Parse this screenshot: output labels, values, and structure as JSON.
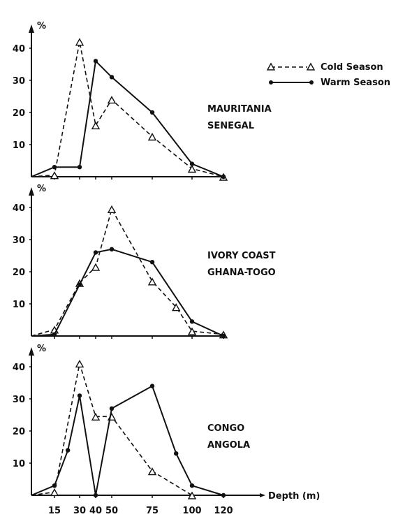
{
  "chart_data": [
    {
      "type": "line",
      "title": "",
      "region_lines": [
        "MAURITANIA",
        "SENEGAL"
      ],
      "ylabel": "%",
      "xlabel": "",
      "ylim": [
        0,
        45
      ],
      "yticks": [
        10,
        20,
        30,
        40
      ],
      "series": [
        {
          "name": "Cold Season",
          "style": "dashed-triangle",
          "x": [
            0,
            15,
            30,
            40,
            50,
            75,
            100,
            120
          ],
          "y": [
            0,
            0.5,
            42,
            16,
            24,
            12.5,
            2.5,
            0
          ]
        },
        {
          "name": "Warm Season",
          "style": "solid-dot",
          "x": [
            0,
            15,
            30,
            40,
            50,
            75,
            100,
            120
          ],
          "y": [
            0,
            3,
            3,
            36,
            31,
            20,
            4,
            0
          ]
        }
      ]
    },
    {
      "type": "line",
      "title": "",
      "region_lines": [
        "IVORY COAST",
        "GHANA-TOGO"
      ],
      "ylabel": "%",
      "xlabel": "",
      "ylim": [
        0,
        45
      ],
      "yticks": [
        10,
        20,
        30,
        40
      ],
      "series": [
        {
          "name": "Cold Season",
          "style": "dashed-triangle",
          "x": [
            0,
            15,
            30,
            40,
            50,
            75,
            90,
            100,
            120
          ],
          "y": [
            0,
            2,
            16.5,
            21.5,
            39.5,
            17,
            9,
            1.5,
            0.5
          ]
        },
        {
          "name": "Warm Season",
          "style": "solid-dot",
          "x": [
            0,
            15,
            30,
            40,
            50,
            75,
            100,
            120
          ],
          "y": [
            0,
            0.5,
            16,
            26,
            27,
            23,
            4.5,
            0
          ]
        }
      ]
    },
    {
      "type": "line",
      "title": "",
      "region_lines": [
        "CONGO",
        "ANGOLA"
      ],
      "ylabel": "%",
      "xlabel": "Depth (m)",
      "ylim": [
        0,
        45
      ],
      "yticks": [
        10,
        20,
        30,
        40
      ],
      "xticks": [
        15,
        30,
        40,
        50,
        75,
        100,
        120
      ],
      "series": [
        {
          "name": "Cold Season",
          "style": "dashed-triangle",
          "x": [
            0,
            15,
            30,
            40,
            50,
            75,
            100
          ],
          "y": [
            0,
            1,
            41,
            24.5,
            24.5,
            7.5,
            0
          ]
        },
        {
          "name": "Warm Season",
          "style": "solid-dot",
          "x": [
            0,
            15,
            23,
            30,
            40,
            50,
            75,
            90,
            100,
            120
          ],
          "y": [
            0,
            3,
            14,
            31,
            0,
            27,
            34,
            13,
            3,
            0
          ]
        }
      ]
    }
  ],
  "legend": {
    "placement": "top-right",
    "items": [
      {
        "label": "Cold Season",
        "style": "dashed-triangle"
      },
      {
        "label": "Warm Season",
        "style": "solid-dot"
      }
    ]
  },
  "colors": {
    "ink": "#111111",
    "background": "#ffffff"
  }
}
